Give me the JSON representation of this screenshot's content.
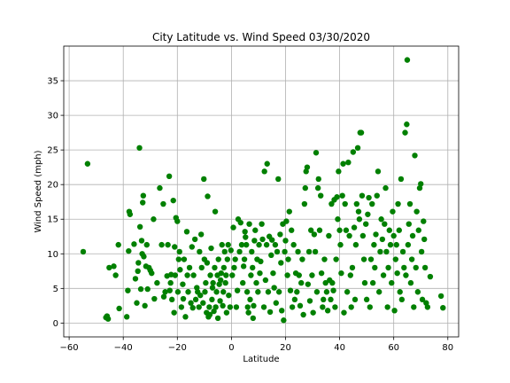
{
  "chart_data": {
    "type": "scatter",
    "title": "City Latitude vs. Wind Speed 03/30/2020",
    "xlabel": "Latitude",
    "ylabel": "Wind Speed (mph)",
    "xlim": [
      -62,
      84
    ],
    "ylim": [
      -2,
      40
    ],
    "xticks": [
      -60,
      -40,
      -20,
      0,
      20,
      40,
      60,
      80
    ],
    "yticks": [
      0,
      5,
      10,
      15,
      20,
      25,
      30,
      35
    ],
    "grid": true,
    "legend": "none",
    "marker_color": "#008000",
    "points": [
      [
        -54.8,
        10.3
      ],
      [
        -53.2,
        23.0
      ],
      [
        -46.4,
        0.8
      ],
      [
        -46.0,
        1.0
      ],
      [
        -45.6,
        0.6
      ],
      [
        -45.2,
        8.0
      ],
      [
        -43.5,
        8.2
      ],
      [
        -42.8,
        6.9
      ],
      [
        -41.8,
        11.3
      ],
      [
        -41.5,
        2.1
      ],
      [
        -38.7,
        0.9
      ],
      [
        -38.3,
        4.7
      ],
      [
        -38.0,
        10.4
      ],
      [
        -37.8,
        16.1
      ],
      [
        -37.5,
        15.7
      ],
      [
        -36.0,
        11.4
      ],
      [
        -35.5,
        6.4
      ],
      [
        -35.0,
        2.9
      ],
      [
        -34.6,
        7.5
      ],
      [
        -34.4,
        8.7
      ],
      [
        -34.0,
        25.3
      ],
      [
        -33.8,
        13.9
      ],
      [
        -33.5,
        4.9
      ],
      [
        -33.2,
        11.9
      ],
      [
        -33.0,
        10.0
      ],
      [
        -32.8,
        17.4
      ],
      [
        -32.6,
        18.4
      ],
      [
        -32.4,
        9.6
      ],
      [
        -32.0,
        2.5
      ],
      [
        -31.6,
        8.2
      ],
      [
        -31.3,
        11.3
      ],
      [
        -31.0,
        4.9
      ],
      [
        -30.5,
        8.0
      ],
      [
        -30.0,
        7.6
      ],
      [
        -29.5,
        7.2
      ],
      [
        -28.8,
        15.0
      ],
      [
        -28.5,
        3.5
      ],
      [
        -27.5,
        5.8
      ],
      [
        -26.5,
        19.5
      ],
      [
        -25.8,
        11.3
      ],
      [
        -25.2,
        17.2
      ],
      [
        -25.0,
        3.8
      ],
      [
        -24.5,
        4.5
      ],
      [
        -23.8,
        6.8
      ],
      [
        -23.5,
        11.3
      ],
      [
        -23.0,
        21.2
      ],
      [
        -22.8,
        4.7
      ],
      [
        -22.5,
        5.8
      ],
      [
        -22.3,
        7.0
      ],
      [
        -22.0,
        3.4
      ],
      [
        -21.5,
        17.7
      ],
      [
        -21.2,
        1.5
      ],
      [
        -21.0,
        11.0
      ],
      [
        -20.8,
        6.9
      ],
      [
        -20.5,
        15.2
      ],
      [
        -20.0,
        14.7
      ],
      [
        -19.8,
        4.5
      ],
      [
        -19.5,
        9.2
      ],
      [
        -19.2,
        10.3
      ],
      [
        -19.0,
        7.7
      ],
      [
        -18.5,
        2.3
      ],
      [
        -18.0,
        5.6
      ],
      [
        -17.8,
        3.5
      ],
      [
        -17.5,
        9.2
      ],
      [
        -17.0,
        0.9
      ],
      [
        -16.5,
        13.2
      ],
      [
        -16.3,
        6.9
      ],
      [
        -16.0,
        4.5
      ],
      [
        -15.5,
        8.0
      ],
      [
        -15.0,
        2.9
      ],
      [
        -14.6,
        11.0
      ],
      [
        -14.3,
        2.2
      ],
      [
        -14.0,
        6.9
      ],
      [
        -13.5,
        12.1
      ],
      [
        -13.2,
        3.4
      ],
      [
        -12.8,
        5.1
      ],
      [
        -12.5,
        4.5
      ],
      [
        -12.0,
        2.3
      ],
      [
        -11.8,
        10.3
      ],
      [
        -11.5,
        4.0
      ],
      [
        -11.2,
        12.8
      ],
      [
        -11.0,
        8.0
      ],
      [
        -10.5,
        2.9
      ],
      [
        -10.2,
        20.8
      ],
      [
        -10.0,
        9.2
      ],
      [
        -9.8,
        4.5
      ],
      [
        -9.5,
        5.8
      ],
      [
        -9.2,
        1.5
      ],
      [
        -9.0,
        8.7
      ],
      [
        -8.8,
        18.3
      ],
      [
        -8.5,
        0.9
      ],
      [
        -8.2,
        2.3
      ],
      [
        -8.0,
        1.2
      ],
      [
        -7.8,
        6.9
      ],
      [
        -7.5,
        10.8
      ],
      [
        -7.2,
        3.4
      ],
      [
        -7.0,
        5.1
      ],
      [
        -6.8,
        5.8
      ],
      [
        -6.5,
        1.7
      ],
      [
        -6.2,
        8.0
      ],
      [
        -6.0,
        16.1
      ],
      [
        -5.8,
        2.3
      ],
      [
        -5.5,
        4.5
      ],
      [
        -5.2,
        6.9
      ],
      [
        -5.0,
        0.7
      ],
      [
        -4.8,
        9.2
      ],
      [
        -4.5,
        5.6
      ],
      [
        -4.2,
        3.2
      ],
      [
        -4.0,
        6.2
      ],
      [
        -3.8,
        7.2
      ],
      [
        -3.5,
        11.3
      ],
      [
        -3.2,
        2.5
      ],
      [
        -3.0,
        4.5
      ],
      [
        -2.8,
        8.0
      ],
      [
        -2.5,
        10.3
      ],
      [
        -2.2,
        5.8
      ],
      [
        -2.0,
        6.9
      ],
      [
        -1.8,
        1.5
      ],
      [
        -1.5,
        9.2
      ],
      [
        -1.2,
        11.3
      ],
      [
        -1.0,
        4.0
      ],
      [
        -0.5,
        2.3
      ],
      [
        -0.2,
        10.5
      ],
      [
        0.3,
        6.9
      ],
      [
        0.7,
        13.8
      ],
      [
        1.0,
        8.0
      ],
      [
        1.4,
        9.2
      ],
      [
        1.8,
        2.3
      ],
      [
        2.2,
        4.7
      ],
      [
        2.5,
        15.0
      ],
      [
        3.0,
        10.3
      ],
      [
        3.4,
        14.5
      ],
      [
        3.8,
        11.3
      ],
      [
        4.2,
        5.8
      ],
      [
        4.5,
        8.2
      ],
      [
        4.8,
        9.2
      ],
      [
        5.0,
        13.2
      ],
      [
        5.2,
        12.4
      ],
      [
        5.5,
        11.3
      ],
      [
        5.8,
        4.5
      ],
      [
        6.0,
        2.3
      ],
      [
        6.3,
        1.5
      ],
      [
        6.6,
        14.3
      ],
      [
        6.9,
        3.4
      ],
      [
        7.2,
        6.9
      ],
      [
        7.5,
        10.3
      ],
      [
        7.8,
        8.0
      ],
      [
        8.0,
        0.7
      ],
      [
        8.2,
        2.5
      ],
      [
        8.5,
        11.9
      ],
      [
        8.8,
        13.4
      ],
      [
        9.2,
        5.8
      ],
      [
        9.5,
        9.2
      ],
      [
        9.8,
        4.5
      ],
      [
        10.2,
        11.3
      ],
      [
        10.5,
        7.2
      ],
      [
        10.8,
        8.9
      ],
      [
        11.2,
        14.3
      ],
      [
        11.5,
        12.1
      ],
      [
        12.0,
        2.3
      ],
      [
        12.2,
        21.9
      ],
      [
        12.6,
        6.2
      ],
      [
        13.0,
        11.3
      ],
      [
        13.2,
        23.0
      ],
      [
        13.6,
        4.5
      ],
      [
        14.0,
        12.5
      ],
      [
        14.3,
        1.6
      ],
      [
        14.7,
        9.8
      ],
      [
        15.0,
        12.0
      ],
      [
        15.4,
        7.2
      ],
      [
        15.8,
        5.1
      ],
      [
        16.2,
        11.3
      ],
      [
        16.5,
        2.9
      ],
      [
        16.9,
        10.3
      ],
      [
        17.3,
        20.8
      ],
      [
        17.6,
        4.5
      ],
      [
        18.0,
        12.8
      ],
      [
        18.3,
        8.7
      ],
      [
        18.6,
        1.8
      ],
      [
        19.0,
        14.3
      ],
      [
        19.3,
        0.4
      ],
      [
        19.7,
        10.3
      ],
      [
        20.0,
        11.9
      ],
      [
        20.3,
        14.7
      ],
      [
        20.7,
        6.9
      ],
      [
        21.0,
        9.2
      ],
      [
        21.4,
        16.1
      ],
      [
        21.8,
        4.7
      ],
      [
        22.2,
        13.4
      ],
      [
        22.5,
        2.3
      ],
      [
        23.0,
        11.3
      ],
      [
        23.4,
        3.4
      ],
      [
        23.8,
        7.2
      ],
      [
        24.2,
        4.5
      ],
      [
        24.6,
        10.3
      ],
      [
        25.0,
        6.9
      ],
      [
        25.4,
        2.5
      ],
      [
        25.8,
        5.8
      ],
      [
        26.2,
        9.2
      ],
      [
        26.6,
        1.2
      ],
      [
        27.0,
        17.2
      ],
      [
        27.3,
        19.5
      ],
      [
        27.6,
        21.9
      ],
      [
        28.0,
        22.5
      ],
      [
        28.3,
        5.6
      ],
      [
        28.7,
        10.3
      ],
      [
        29.0,
        3.2
      ],
      [
        29.4,
        13.4
      ],
      [
        29.8,
        6.9
      ],
      [
        30.2,
        1.5
      ],
      [
        30.6,
        12.8
      ],
      [
        31.0,
        10.3
      ],
      [
        31.3,
        24.6
      ],
      [
        31.6,
        4.5
      ],
      [
        32.0,
        19.5
      ],
      [
        32.2,
        20.8
      ],
      [
        32.6,
        13.4
      ],
      [
        33.0,
        18.4
      ],
      [
        33.3,
        7.2
      ],
      [
        33.7,
        2.3
      ],
      [
        34.0,
        3.4
      ],
      [
        34.4,
        9.2
      ],
      [
        34.8,
        5.8
      ],
      [
        35.2,
        4.5
      ],
      [
        35.6,
        1.8
      ],
      [
        36.0,
        12.6
      ],
      [
        36.3,
        6.2
      ],
      [
        36.7,
        3.4
      ],
      [
        37.0,
        17.2
      ],
      [
        37.3,
        5.8
      ],
      [
        37.7,
        4.7
      ],
      [
        38.0,
        17.8
      ],
      [
        38.3,
        2.3
      ],
      [
        38.7,
        9.2
      ],
      [
        39.0,
        18.2
      ],
      [
        39.3,
        15.0
      ],
      [
        39.6,
        21.9
      ],
      [
        40.0,
        13.4
      ],
      [
        40.3,
        11.3
      ],
      [
        40.6,
        7.2
      ],
      [
        41.0,
        18.4
      ],
      [
        41.3,
        23.0
      ],
      [
        41.6,
        1.5
      ],
      [
        42.0,
        17.2
      ],
      [
        42.4,
        13.4
      ],
      [
        42.8,
        4.5
      ],
      [
        43.2,
        23.2
      ],
      [
        43.6,
        12.6
      ],
      [
        44.0,
        6.9
      ],
      [
        44.3,
        2.3
      ],
      [
        44.7,
        8.0
      ],
      [
        45.0,
        24.7
      ],
      [
        45.4,
        13.8
      ],
      [
        45.7,
        3.4
      ],
      [
        46.0,
        11.3
      ],
      [
        46.3,
        17.2
      ],
      [
        46.7,
        25.3
      ],
      [
        47.0,
        16.1
      ],
      [
        47.3,
        15.0
      ],
      [
        47.6,
        27.5
      ],
      [
        48.0,
        27.5
      ],
      [
        48.3,
        18.4
      ],
      [
        48.6,
        12.6
      ],
      [
        49.0,
        9.2
      ],
      [
        49.3,
        5.8
      ],
      [
        49.7,
        14.3
      ],
      [
        50.0,
        3.4
      ],
      [
        50.4,
        15.7
      ],
      [
        50.8,
        18.1
      ],
      [
        51.2,
        2.3
      ],
      [
        51.6,
        9.2
      ],
      [
        52.0,
        17.2
      ],
      [
        52.3,
        5.8
      ],
      [
        52.7,
        11.3
      ],
      [
        53.0,
        8.0
      ],
      [
        53.4,
        12.8
      ],
      [
        53.8,
        18.4
      ],
      [
        54.2,
        21.9
      ],
      [
        54.6,
        4.5
      ],
      [
        55.0,
        10.3
      ],
      [
        55.4,
        15.0
      ],
      [
        55.8,
        12.1
      ],
      [
        56.2,
        6.9
      ],
      [
        56.6,
        14.3
      ],
      [
        57.0,
        19.5
      ],
      [
        57.3,
        10.3
      ],
      [
        57.7,
        2.3
      ],
      [
        58.0,
        8.0
      ],
      [
        58.4,
        13.4
      ],
      [
        58.8,
        11.3
      ],
      [
        59.2,
        5.8
      ],
      [
        59.6,
        16.1
      ],
      [
        60.0,
        12.6
      ],
      [
        60.3,
        1.8
      ],
      [
        60.7,
        9.2
      ],
      [
        61.0,
        11.3
      ],
      [
        61.3,
        7.2
      ],
      [
        61.6,
        17.2
      ],
      [
        62.0,
        13.4
      ],
      [
        62.3,
        4.5
      ],
      [
        62.7,
        20.8
      ],
      [
        63.0,
        3.4
      ],
      [
        63.4,
        10.3
      ],
      [
        63.8,
        8.0
      ],
      [
        64.2,
        27.5
      ],
      [
        64.5,
        6.9
      ],
      [
        64.8,
        28.7
      ],
      [
        65.0,
        38.0
      ],
      [
        65.3,
        11.3
      ],
      [
        65.6,
        14.3
      ],
      [
        66.0,
        17.2
      ],
      [
        66.3,
        5.8
      ],
      [
        66.7,
        9.2
      ],
      [
        67.0,
        12.6
      ],
      [
        67.4,
        2.3
      ],
      [
        67.8,
        24.2
      ],
      [
        68.2,
        8.0
      ],
      [
        68.5,
        16.1
      ],
      [
        68.9,
        4.5
      ],
      [
        69.2,
        13.4
      ],
      [
        69.6,
        19.5
      ],
      [
        70.0,
        20.1
      ],
      [
        70.3,
        10.3
      ],
      [
        70.6,
        3.4
      ],
      [
        71.0,
        14.7
      ],
      [
        71.3,
        12.1
      ],
      [
        71.6,
        8.0
      ],
      [
        72.0,
        2.9
      ],
      [
        72.5,
        2.3
      ],
      [
        73.5,
        6.7
      ],
      [
        77.5,
        3.9
      ],
      [
        78.2,
        2.2
      ]
    ]
  }
}
